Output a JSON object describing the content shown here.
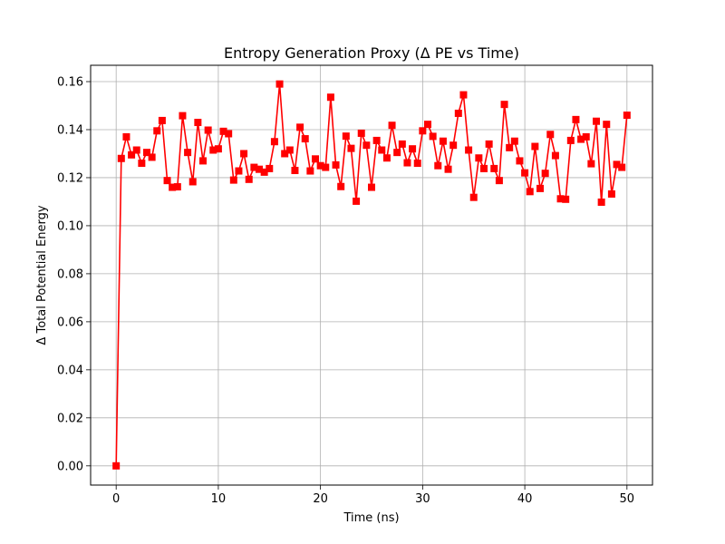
{
  "chart_data": {
    "type": "line",
    "title": "Entropy Generation Proxy (Δ PE vs Time)",
    "xlabel": "Time (ns)",
    "ylabel": "Δ Total Potential Energy",
    "xlim": [
      -2.5,
      52.5
    ],
    "ylim": [
      -0.008,
      0.1668
    ],
    "xticks": [
      0,
      10,
      20,
      30,
      40,
      50
    ],
    "yticks": [
      0.0,
      0.02,
      0.04,
      0.06,
      0.08,
      0.1,
      0.12,
      0.14,
      0.16
    ],
    "xtick_labels": [
      "0",
      "10",
      "20",
      "30",
      "40",
      "50"
    ],
    "ytick_labels": [
      "0.00",
      "0.02",
      "0.04",
      "0.06",
      "0.08",
      "0.10",
      "0.12",
      "0.14",
      "0.16"
    ],
    "grid": true,
    "series": [
      {
        "color": "#ff0000",
        "marker": "square",
        "x": [
          0.0,
          0.5,
          1.0,
          1.5,
          2.0,
          2.5,
          3.0,
          3.5,
          4.0,
          4.5,
          5.0,
          5.5,
          6.0,
          6.5,
          7.0,
          7.5,
          8.0,
          8.5,
          9.0,
          9.5,
          10.0,
          10.5,
          11.0,
          11.5,
          12.0,
          12.5,
          13.0,
          13.5,
          14.0,
          14.5,
          15.0,
          15.5,
          16.0,
          16.5,
          17.0,
          17.5,
          18.0,
          18.5,
          19.0,
          19.5,
          20.0,
          20.5,
          21.0,
          21.5,
          22.0,
          22.5,
          23.0,
          23.5,
          24.0,
          24.5,
          25.0,
          25.5,
          26.0,
          26.5,
          27.0,
          27.5,
          28.0,
          28.5,
          29.0,
          29.5,
          30.0,
          30.5,
          31.0,
          31.5,
          32.0,
          32.5,
          33.0,
          33.5,
          34.0,
          34.5,
          35.0,
          35.5,
          36.0,
          36.5,
          37.0,
          37.5,
          38.0,
          38.5,
          39.0,
          39.5,
          40.0,
          40.5,
          41.0,
          41.5,
          42.0,
          42.5,
          43.0,
          43.5,
          44.0,
          44.5,
          45.0,
          45.5,
          46.0,
          46.5,
          47.0,
          47.5,
          48.0,
          48.5,
          49.0,
          49.5,
          50.0
        ],
        "y": [
          0.0,
          0.128,
          0.137,
          0.1295,
          0.1315,
          0.126,
          0.1305,
          0.1285,
          0.1395,
          0.1438,
          0.1188,
          0.116,
          0.1162,
          0.1458,
          0.1305,
          0.1183,
          0.143,
          0.127,
          0.1398,
          0.1315,
          0.132,
          0.1393,
          0.1383,
          0.119,
          0.1228,
          0.13,
          0.1193,
          0.1243,
          0.1235,
          0.1223,
          0.1238,
          0.135,
          0.159,
          0.13,
          0.1315,
          0.123,
          0.141,
          0.1362,
          0.1228,
          0.1278,
          0.125,
          0.1243,
          0.1535,
          0.1253,
          0.1163,
          0.1373,
          0.1322,
          0.1102,
          0.1385,
          0.1335,
          0.116,
          0.1355,
          0.1315,
          0.1282,
          0.1418,
          0.1305,
          0.134,
          0.1262,
          0.132,
          0.126,
          0.1395,
          0.1422,
          0.1372,
          0.125,
          0.1352,
          0.1235,
          0.1335,
          0.1468,
          0.1545,
          0.1315,
          0.1118,
          0.1282,
          0.1238,
          0.134,
          0.1238,
          0.1188,
          0.1505,
          0.1325,
          0.1352,
          0.127,
          0.122,
          0.1142,
          0.133,
          0.1155,
          0.1218,
          0.138,
          0.1292,
          0.1112,
          0.111,
          0.1355,
          0.1442,
          0.136,
          0.137,
          0.1258,
          0.1435,
          0.1098,
          0.1422,
          0.1132,
          0.1255,
          0.1243,
          0.146
        ]
      }
    ]
  }
}
